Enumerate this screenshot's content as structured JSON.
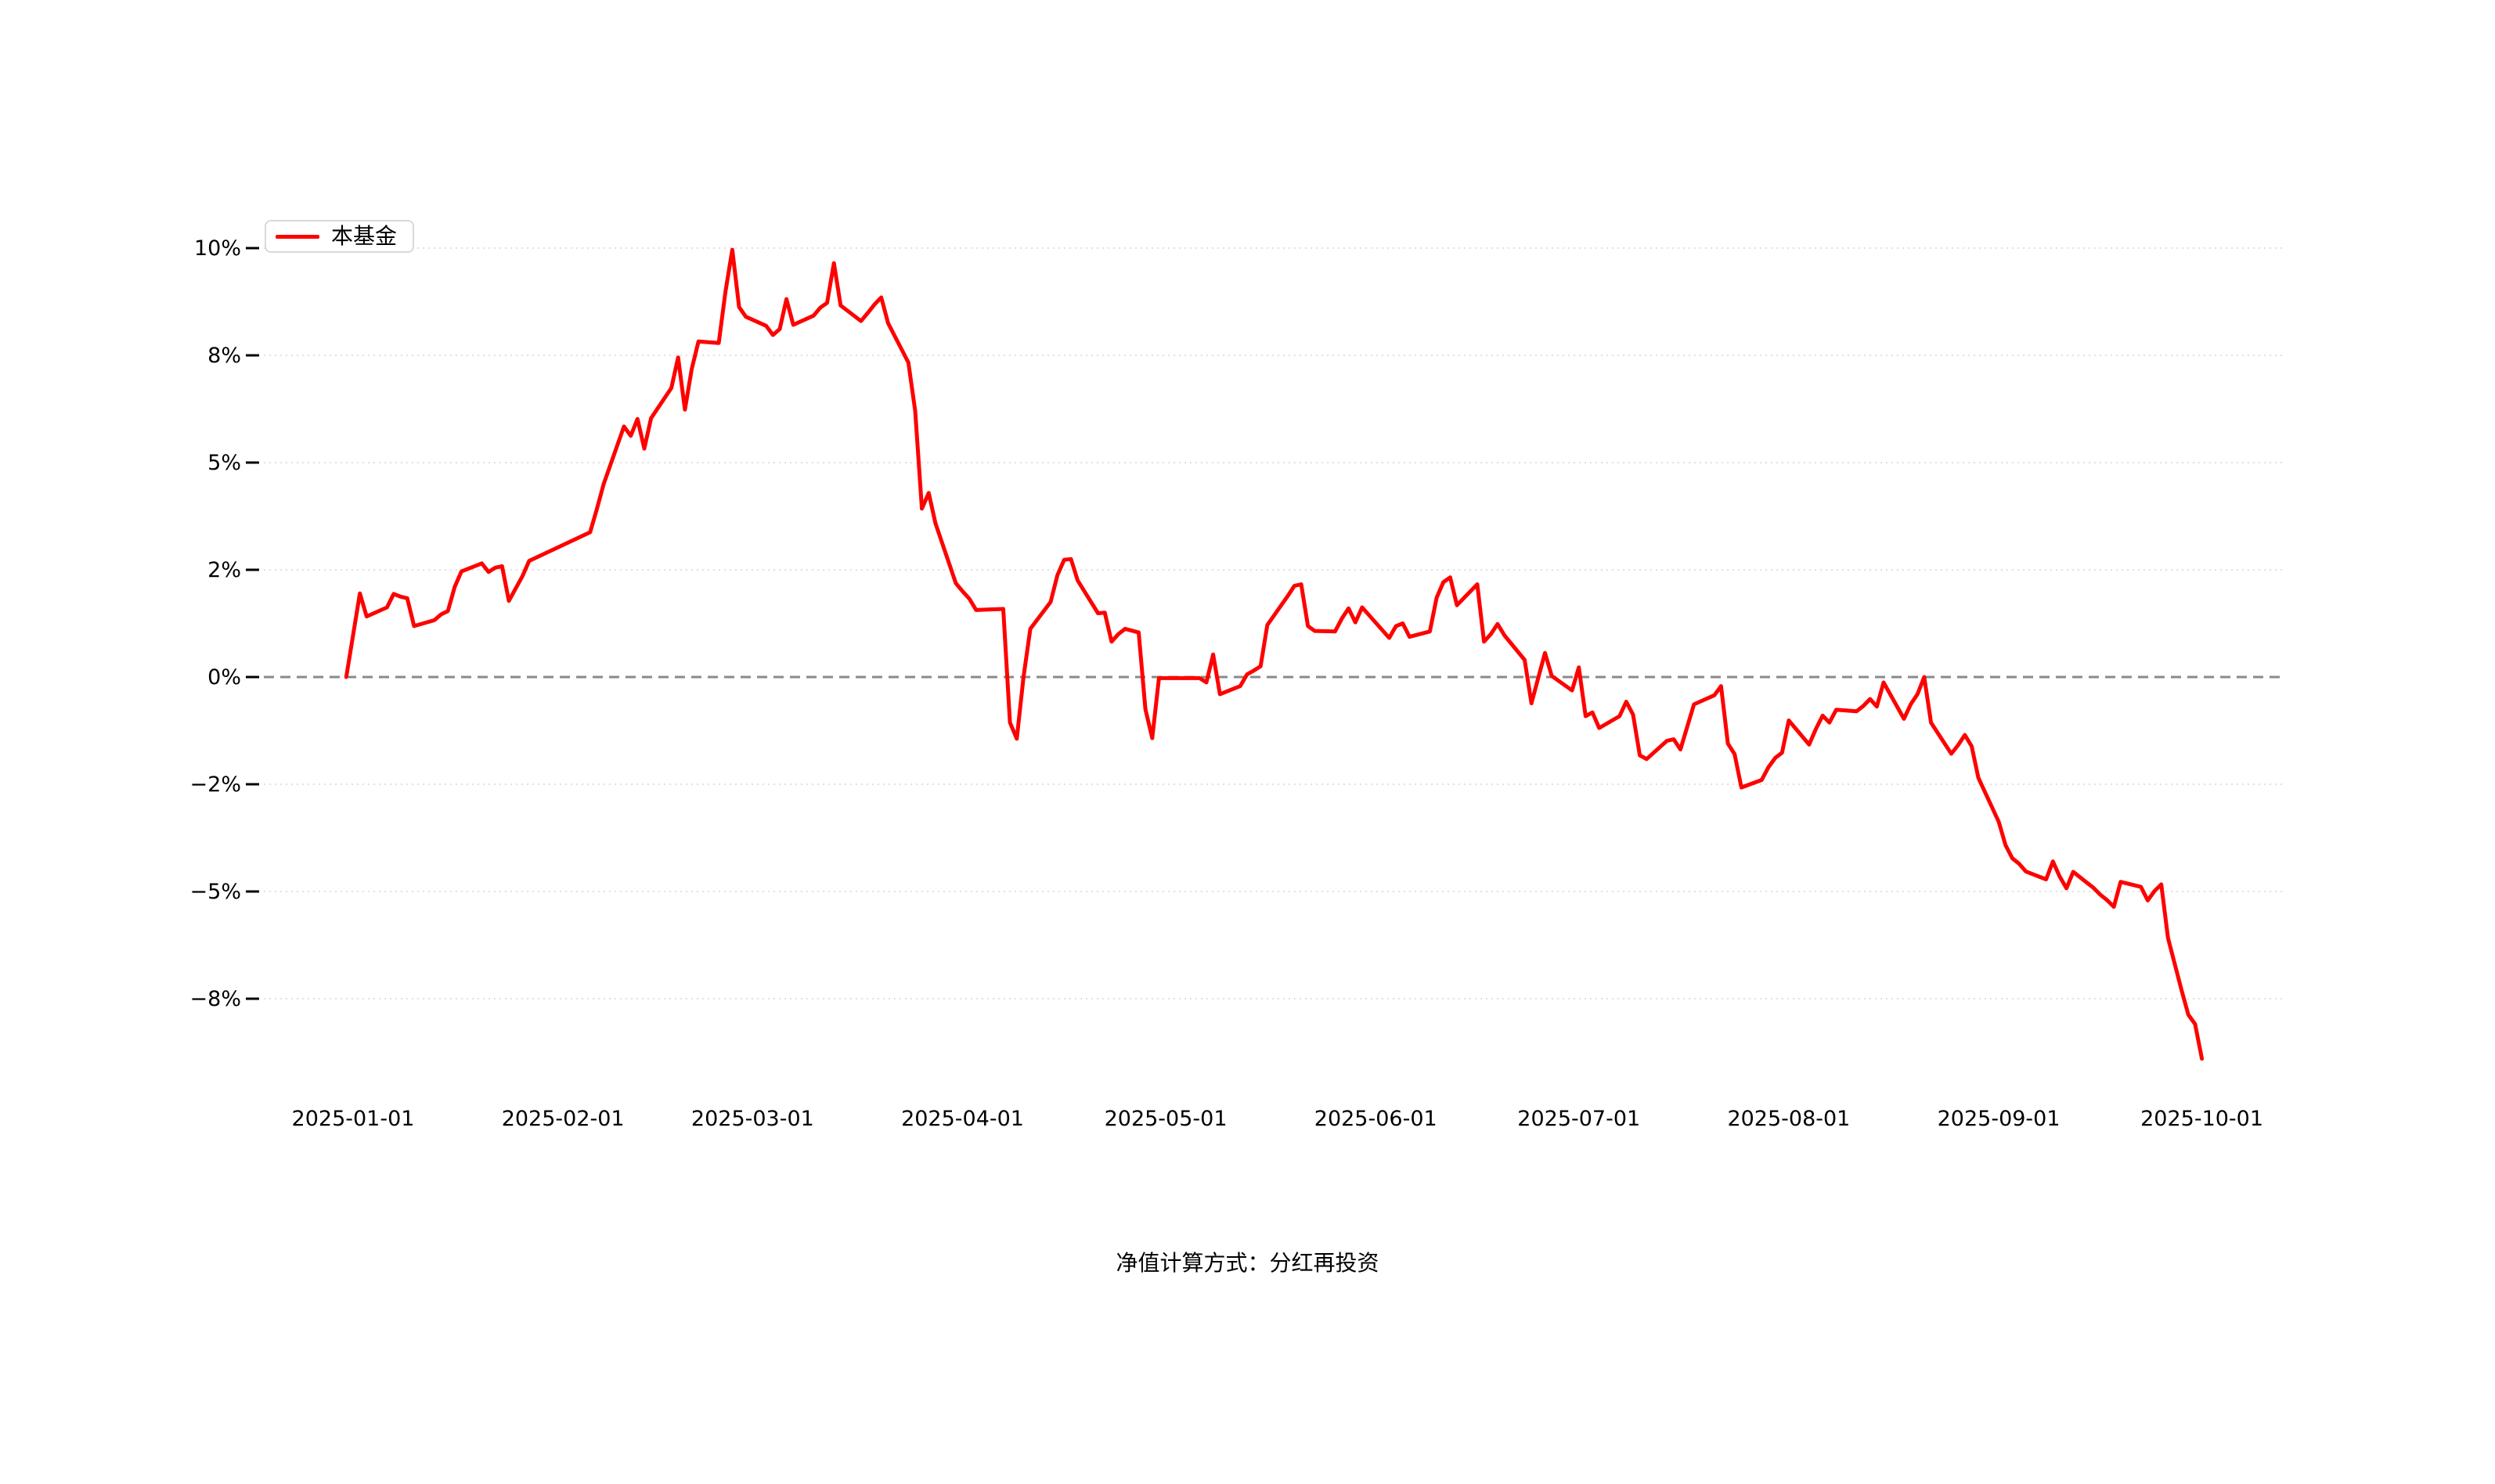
{
  "chart_data": {
    "type": "line",
    "grid": "dotted",
    "zero_line_style": "dashed",
    "legend_position": "top-left",
    "accent_color": "#ff0000",
    "y_axis": {
      "tick_values": [
        10,
        8,
        5,
        2,
        0,
        -2,
        -5,
        -8
      ],
      "tick_labels": [
        "10%",
        "8%",
        "5%",
        "2%",
        "0%",
        "−2%",
        "−5%",
        "−8%"
      ],
      "scale_note": "ticks evenly spaced on canvas (non-linear percent scale)"
    },
    "x_axis": {
      "tick_labels": [
        "2025-01-01",
        "2025-02-01",
        "2025-03-01",
        "2025-04-01",
        "2025-05-01",
        "2025-06-01",
        "2025-07-01",
        "2025-08-01",
        "2025-09-01",
        "2025-10-01"
      ]
    },
    "series": [
      {
        "name": "本基金",
        "color": "#ff0000",
        "unit": "%",
        "points": [
          [
            "2024-12-31",
            0.0
          ],
          [
            "2025-01-02",
            1.56
          ],
          [
            "2025-01-03",
            1.13
          ],
          [
            "2025-01-06",
            1.3
          ],
          [
            "2025-01-07",
            1.55
          ],
          [
            "2025-01-08",
            1.5
          ],
          [
            "2025-01-09",
            1.47
          ],
          [
            "2025-01-10",
            0.95
          ],
          [
            "2025-01-13",
            1.06
          ],
          [
            "2025-01-14",
            1.17
          ],
          [
            "2025-01-15",
            1.23
          ],
          [
            "2025-01-16",
            1.68
          ],
          [
            "2025-01-17",
            1.97
          ],
          [
            "2025-01-20",
            2.18
          ],
          [
            "2025-01-21",
            1.96
          ],
          [
            "2025-01-22",
            2.06
          ],
          [
            "2025-01-23",
            2.1
          ],
          [
            "2025-01-24",
            1.42
          ],
          [
            "2025-01-26",
            1.88
          ],
          [
            "2025-01-27",
            2.25
          ],
          [
            "2025-02-05",
            3.05
          ],
          [
            "2025-02-06",
            3.7
          ],
          [
            "2025-02-07",
            4.4
          ],
          [
            "2025-02-10",
            6.01
          ],
          [
            "2025-02-11",
            5.75
          ],
          [
            "2025-02-12",
            6.22
          ],
          [
            "2025-02-13",
            5.39
          ],
          [
            "2025-02-14",
            6.24
          ],
          [
            "2025-02-17",
            7.09
          ],
          [
            "2025-02-18",
            7.94
          ],
          [
            "2025-02-19",
            6.48
          ],
          [
            "2025-02-20",
            7.61
          ],
          [
            "2025-02-21",
            8.26
          ],
          [
            "2025-02-24",
            8.23
          ],
          [
            "2025-02-25",
            9.2
          ],
          [
            "2025-02-26",
            9.97
          ],
          [
            "2025-02-27",
            8.9
          ],
          [
            "2025-02-28",
            8.72
          ],
          [
            "2025-03-03",
            8.55
          ],
          [
            "2025-03-04",
            8.38
          ],
          [
            "2025-03-05",
            8.49
          ],
          [
            "2025-03-06",
            9.05
          ],
          [
            "2025-03-07",
            8.57
          ],
          [
            "2025-03-10",
            8.74
          ],
          [
            "2025-03-11",
            8.89
          ],
          [
            "2025-03-12",
            8.98
          ],
          [
            "2025-03-13",
            9.72
          ],
          [
            "2025-03-14",
            8.93
          ],
          [
            "2025-03-17",
            8.64
          ],
          [
            "2025-03-18",
            8.79
          ],
          [
            "2025-03-19",
            8.95
          ],
          [
            "2025-03-20",
            9.08
          ],
          [
            "2025-03-21",
            8.6
          ],
          [
            "2025-03-24",
            7.8
          ],
          [
            "2025-03-25",
            6.45
          ],
          [
            "2025-03-26",
            3.71
          ],
          [
            "2025-03-27",
            4.15
          ],
          [
            "2025-03-28",
            3.3
          ],
          [
            "2025-03-31",
            1.75
          ],
          [
            "2025-04-01",
            1.6
          ],
          [
            "2025-04-02",
            1.46
          ],
          [
            "2025-04-03",
            1.25
          ],
          [
            "2025-04-07",
            1.27
          ],
          [
            "2025-04-08",
            -0.85
          ],
          [
            "2025-04-09",
            -1.15
          ],
          [
            "2025-04-10",
            0.0
          ],
          [
            "2025-04-11",
            0.9
          ],
          [
            "2025-04-14",
            1.4
          ],
          [
            "2025-04-15",
            1.9
          ],
          [
            "2025-04-16",
            2.28
          ],
          [
            "2025-04-17",
            2.3
          ],
          [
            "2025-04-18",
            1.8
          ],
          [
            "2025-04-21",
            1.19
          ],
          [
            "2025-04-22",
            1.2
          ],
          [
            "2025-04-23",
            0.66
          ],
          [
            "2025-04-24",
            0.8
          ],
          [
            "2025-04-25",
            0.9
          ],
          [
            "2025-04-27",
            0.83
          ],
          [
            "2025-04-28",
            -0.6
          ],
          [
            "2025-04-29",
            -1.14
          ],
          [
            "2025-04-30",
            -0.02
          ],
          [
            "2025-05-06",
            -0.02
          ],
          [
            "2025-05-07",
            -0.1
          ],
          [
            "2025-05-08",
            0.42
          ],
          [
            "2025-05-09",
            -0.32
          ],
          [
            "2025-05-12",
            -0.17
          ],
          [
            "2025-05-13",
            0.05
          ],
          [
            "2025-05-14",
            0.12
          ],
          [
            "2025-05-15",
            0.2
          ],
          [
            "2025-05-16",
            0.97
          ],
          [
            "2025-05-19",
            1.51
          ],
          [
            "2025-05-20",
            1.7
          ],
          [
            "2025-05-21",
            1.73
          ],
          [
            "2025-05-22",
            0.95
          ],
          [
            "2025-05-23",
            0.86
          ],
          [
            "2025-05-26",
            0.85
          ],
          [
            "2025-05-27",
            1.09
          ],
          [
            "2025-05-28",
            1.28
          ],
          [
            "2025-05-29",
            1.02
          ],
          [
            "2025-05-30",
            1.3
          ],
          [
            "2025-06-03",
            0.73
          ],
          [
            "2025-06-04",
            0.95
          ],
          [
            "2025-06-05",
            1.0
          ],
          [
            "2025-06-06",
            0.75
          ],
          [
            "2025-06-09",
            0.85
          ],
          [
            "2025-06-10",
            1.48
          ],
          [
            "2025-06-11",
            1.77
          ],
          [
            "2025-06-12",
            1.86
          ],
          [
            "2025-06-13",
            1.34
          ],
          [
            "2025-06-16",
            1.73
          ],
          [
            "2025-06-17",
            0.66
          ],
          [
            "2025-06-18",
            0.8
          ],
          [
            "2025-06-19",
            0.99
          ],
          [
            "2025-06-20",
            0.78
          ],
          [
            "2025-06-23",
            0.32
          ],
          [
            "2025-06-24",
            -0.49
          ],
          [
            "2025-06-25",
            -0.02
          ],
          [
            "2025-06-26",
            0.45
          ],
          [
            "2025-06-27",
            0.02
          ],
          [
            "2025-06-30",
            -0.25
          ],
          [
            "2025-07-01",
            0.18
          ],
          [
            "2025-07-02",
            -0.73
          ],
          [
            "2025-07-03",
            -0.66
          ],
          [
            "2025-07-04",
            -0.95
          ],
          [
            "2025-07-07",
            -0.73
          ],
          [
            "2025-07-08",
            -0.46
          ],
          [
            "2025-07-09",
            -0.7
          ],
          [
            "2025-07-10",
            -1.46
          ],
          [
            "2025-07-11",
            -1.53
          ],
          [
            "2025-07-14",
            -1.19
          ],
          [
            "2025-07-15",
            -1.16
          ],
          [
            "2025-07-16",
            -1.35
          ],
          [
            "2025-07-18",
            -0.51
          ],
          [
            "2025-07-21",
            -0.34
          ],
          [
            "2025-07-22",
            -0.17
          ],
          [
            "2025-07-23",
            -1.24
          ],
          [
            "2025-07-24",
            -1.44
          ],
          [
            "2025-07-25",
            -2.09
          ],
          [
            "2025-07-28",
            -1.92
          ],
          [
            "2025-07-29",
            -1.68
          ],
          [
            "2025-07-30",
            -1.51
          ],
          [
            "2025-07-31",
            -1.41
          ],
          [
            "2025-08-01",
            -0.81
          ],
          [
            "2025-08-04",
            -1.26
          ],
          [
            "2025-08-05",
            -0.97
          ],
          [
            "2025-08-06",
            -0.72
          ],
          [
            "2025-08-07",
            -0.85
          ],
          [
            "2025-08-08",
            -0.61
          ],
          [
            "2025-08-11",
            -0.64
          ],
          [
            "2025-08-12",
            -0.54
          ],
          [
            "2025-08-13",
            -0.41
          ],
          [
            "2025-08-14",
            -0.55
          ],
          [
            "2025-08-15",
            -0.1
          ],
          [
            "2025-08-18",
            -0.78
          ],
          [
            "2025-08-19",
            -0.51
          ],
          [
            "2025-08-20",
            -0.32
          ],
          [
            "2025-08-21",
            0.0
          ],
          [
            "2025-08-22",
            -0.85
          ],
          [
            "2025-08-25",
            -1.43
          ],
          [
            "2025-08-26",
            -1.27
          ],
          [
            "2025-08-27",
            -1.08
          ],
          [
            "2025-08-28",
            -1.29
          ],
          [
            "2025-08-29",
            -1.88
          ],
          [
            "2025-09-01",
            -3.05
          ],
          [
            "2025-09-02",
            -3.7
          ],
          [
            "2025-09-03",
            -4.07
          ],
          [
            "2025-09-04",
            -4.22
          ],
          [
            "2025-09-05",
            -4.44
          ],
          [
            "2025-09-08",
            -4.66
          ],
          [
            "2025-09-09",
            -4.16
          ],
          [
            "2025-09-10",
            -4.58
          ],
          [
            "2025-09-11",
            -4.91
          ],
          [
            "2025-09-12",
            -4.45
          ],
          [
            "2025-09-15",
            -4.9
          ],
          [
            "2025-09-16",
            -5.09
          ],
          [
            "2025-09-17",
            -5.24
          ],
          [
            "2025-09-18",
            -5.43
          ],
          [
            "2025-09-19",
            -4.73
          ],
          [
            "2025-09-22",
            -4.87
          ],
          [
            "2025-09-23",
            -5.25
          ],
          [
            "2025-09-24",
            -4.99
          ],
          [
            "2025-09-25",
            -4.8
          ],
          [
            "2025-09-26",
            -6.3
          ],
          [
            "2025-09-28",
            -7.76
          ],
          [
            "2025-09-29",
            -8.45
          ],
          [
            "2025-09-30",
            -8.71
          ],
          [
            "2025-10-01",
            -9.68
          ]
        ]
      }
    ]
  },
  "legend": {
    "series_label": "本基金"
  },
  "footer": {
    "caption": "净值计算方式：分红再投资"
  }
}
